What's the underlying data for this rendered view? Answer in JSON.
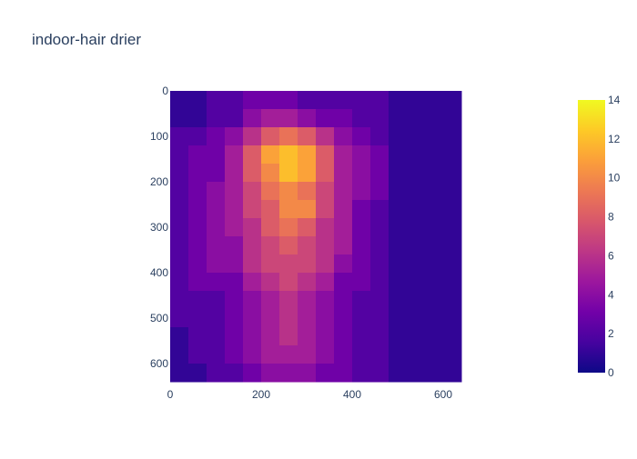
{
  "chart_data": {
    "type": "heatmap",
    "title": "indoor-hair drier",
    "xlabel": "",
    "ylabel": "",
    "x_range": [
      0,
      640
    ],
    "y_range": [
      0,
      640
    ],
    "y_reversed": true,
    "x_ticks": [
      0,
      200,
      400,
      600
    ],
    "y_ticks": [
      0,
      100,
      200,
      300,
      400,
      500,
      600
    ],
    "colorscale": "plasma",
    "colorscale_stops": [
      "#0d0887",
      "#46039f",
      "#7201a8",
      "#9c179e",
      "#bd3786",
      "#d8576b",
      "#ed7953",
      "#fb9f3a",
      "#fdca26",
      "#f0f921"
    ],
    "zmin": 0,
    "zmax": 14,
    "colorbar_ticks": [
      0,
      2,
      4,
      6,
      8,
      10,
      12,
      14
    ],
    "cell_size": 40,
    "z": [
      [
        1,
        1,
        2,
        2,
        3,
        3,
        3,
        2,
        2,
        2,
        2,
        2,
        1,
        1,
        1,
        1
      ],
      [
        1,
        1,
        2,
        2,
        4,
        5,
        5,
        4,
        3,
        3,
        2,
        2,
        1,
        1,
        1,
        1
      ],
      [
        2,
        2,
        3,
        4,
        6,
        8,
        9,
        8,
        6,
        4,
        3,
        2,
        1,
        1,
        1,
        1
      ],
      [
        2,
        3,
        3,
        5,
        8,
        11,
        12,
        11,
        8,
        5,
        4,
        3,
        1,
        1,
        1,
        1
      ],
      [
        2,
        3,
        3,
        5,
        8,
        10,
        12,
        11,
        8,
        5,
        4,
        3,
        1,
        1,
        1,
        1
      ],
      [
        2,
        3,
        4,
        5,
        7,
        9,
        10,
        9,
        7,
        5,
        4,
        3,
        1,
        1,
        1,
        1
      ],
      [
        2,
        3,
        4,
        5,
        7,
        8,
        10,
        10,
        7,
        5,
        3,
        2,
        1,
        1,
        1,
        1
      ],
      [
        2,
        3,
        4,
        5,
        6,
        8,
        9,
        8,
        6,
        5,
        3,
        2,
        1,
        1,
        1,
        1
      ],
      [
        2,
        3,
        4,
        4,
        6,
        7,
        8,
        7,
        6,
        5,
        3,
        2,
        1,
        1,
        1,
        1
      ],
      [
        2,
        3,
        4,
        4,
        6,
        7,
        7,
        7,
        6,
        4,
        3,
        2,
        1,
        1,
        1,
        1
      ],
      [
        2,
        3,
        3,
        3,
        5,
        6,
        7,
        6,
        5,
        3,
        3,
        2,
        1,
        1,
        1,
        1
      ],
      [
        2,
        2,
        2,
        3,
        4,
        5,
        6,
        5,
        4,
        3,
        2,
        2,
        1,
        1,
        1,
        1
      ],
      [
        2,
        2,
        2,
        3,
        4,
        5,
        6,
        5,
        4,
        3,
        2,
        2,
        1,
        1,
        1,
        1
      ],
      [
        1,
        2,
        2,
        3,
        4,
        5,
        6,
        5,
        4,
        3,
        2,
        2,
        1,
        1,
        1,
        1
      ],
      [
        1,
        2,
        2,
        3,
        4,
        5,
        5,
        5,
        4,
        3,
        2,
        2,
        1,
        1,
        1,
        1
      ],
      [
        1,
        1,
        2,
        2,
        3,
        4,
        4,
        4,
        3,
        3,
        2,
        2,
        1,
        1,
        1,
        1
      ]
    ]
  }
}
